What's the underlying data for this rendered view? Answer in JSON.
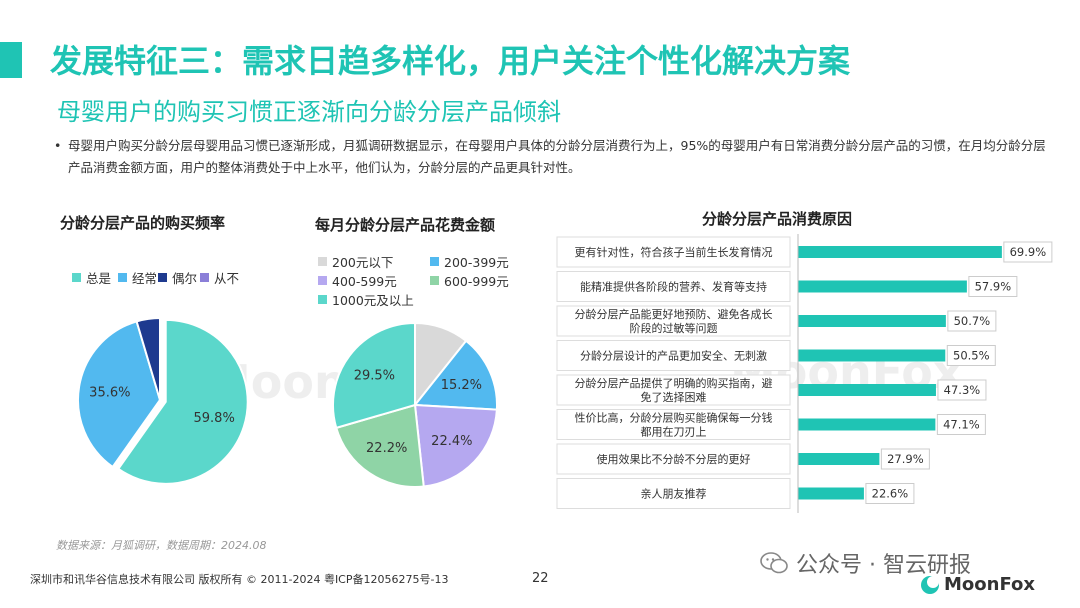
{
  "header": {
    "title": "发展特征三：需求日趋多样化，用户关注个性化解决方案",
    "subtitle": "母婴用户的购买习惯正逐渐向分龄分层产品倾斜"
  },
  "bullet": {
    "marker": "•",
    "text": "母婴用户购买分龄分层母婴用品习惯已逐渐形成，月狐调研数据显示，在母婴用户具体的分龄分层消费行为上，95%的母婴用户有日常消费分龄分层产品的习惯，在月均分龄分层产品消费金额方面，用户的整体消费处于中上水平，他们认为，分龄分层的产品更具针对性。"
  },
  "watermark": {
    "text": "MoonFox"
  },
  "chart_data": [
    {
      "type": "pie",
      "title": "分龄分层产品的购买频率",
      "categories": [
        "总是",
        "经常",
        "偶尔",
        "从不"
      ],
      "values": [
        59.8,
        35.6,
        4.6,
        0.0
      ],
      "labels": [
        "59.8%",
        "35.6%",
        "",
        ""
      ],
      "colors": [
        "#5bd7cb",
        "#52b9ef",
        "#1e3a8f",
        "#8b7fd8"
      ],
      "legend_position": "top",
      "exploded_slice": "总是"
    },
    {
      "type": "pie",
      "title": "每月分龄分层产品花费金额",
      "categories": [
        "200元以下",
        "200-399元",
        "400-599元",
        "600-999元",
        "1000元及以上"
      ],
      "values": [
        10.7,
        15.2,
        22.4,
        22.2,
        29.5
      ],
      "labels": [
        "",
        "15.2%",
        "22.4%",
        "22.2%",
        "29.5%"
      ],
      "colors": [
        "#d9d9d9",
        "#52b9ef",
        "#b5a8f0",
        "#8fd4a6",
        "#5bd7cb"
      ],
      "legend_position": "top"
    },
    {
      "type": "bar",
      "orientation": "horizontal",
      "title": "分龄分层产品消费原因",
      "categories": [
        "更有针对性，符合孩子当前生长发育情况",
        "能精准提供各阶段的营养、发育等支持",
        "分龄分层产品能更好地预防、避免各成长阶段的过敏等问题",
        "分龄分层设计的产品更加安全、无刺激",
        "分龄分层产品提供了明确的购买指南，避免了选择困难",
        "性价比高，分龄分层购买能确保每一分钱都用在刀刃上",
        "使用效果比不分龄不分层的更好",
        "亲人朋友推荐"
      ],
      "category_lines": [
        [
          "更有针对性，符合孩子当前生长发育情况"
        ],
        [
          "能精准提供各阶段的营养、发育等支持"
        ],
        [
          "分龄分层产品能更好地预防、避免各成长",
          "阶段的过敏等问题"
        ],
        [
          "分龄分层设计的产品更加安全、无刺激"
        ],
        [
          "分龄分层产品提供了明确的购买指南，避",
          "免了选择困难"
        ],
        [
          "性价比高，分龄分层购买能确保每一分钱",
          "都用在刀刃上"
        ],
        [
          "使用效果比不分龄不分层的更好"
        ],
        [
          "亲人朋友推荐"
        ]
      ],
      "values": [
        69.9,
        57.9,
        50.7,
        50.5,
        47.3,
        47.1,
        27.9,
        22.6
      ],
      "labels": [
        "69.9%",
        "57.9%",
        "50.7%",
        "50.5%",
        "47.3%",
        "47.1%",
        "27.9%",
        "22.6%"
      ],
      "xlim": [
        0,
        72
      ],
      "color": "#1fc4b4"
    }
  ],
  "footer": {
    "source": "数据来源：月狐调研，数据周期：2024.08",
    "copyright": "深圳市和讯华谷信息技术有限公司 版权所有 © 2011-2024 粤ICP备12056275号-13",
    "page": "22",
    "wechat": "公众号 · 智云研报",
    "brand": "MoonFox"
  }
}
